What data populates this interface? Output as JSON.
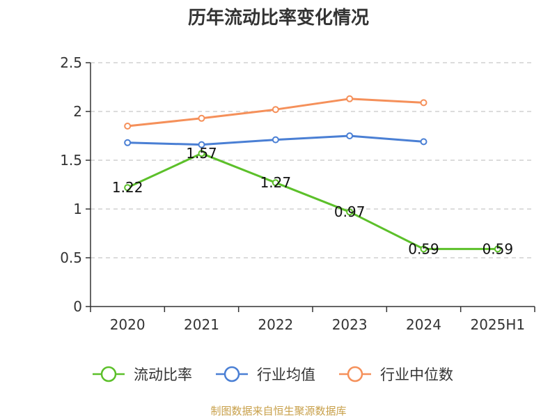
{
  "chart_data": {
    "type": "line",
    "title": "历年流动比率变化情况",
    "categories": [
      "2020",
      "2021",
      "2022",
      "2023",
      "2024",
      "2025H1"
    ],
    "ylim": [
      0,
      2.5
    ],
    "yticks": [
      0,
      0.5,
      1,
      1.5,
      2,
      2.5
    ],
    "ytick_labels": [
      "0",
      "0.5",
      "1",
      "1.5",
      "2",
      "2.5"
    ],
    "grid": "horizontal-dashed",
    "legend_position": "bottom",
    "series": [
      {
        "name": "流动比率",
        "color": "#5cc02a",
        "values": [
          1.22,
          1.57,
          1.27,
          0.97,
          0.59,
          0.59
        ],
        "data_labels": [
          "1.22",
          "1.57",
          "1.27",
          "0.97",
          "0.59",
          "0.59"
        ]
      },
      {
        "name": "行业均值",
        "color": "#4a7fd4",
        "values": [
          1.68,
          1.66,
          1.71,
          1.75,
          1.69,
          null
        ]
      },
      {
        "name": "行业中位数",
        "color": "#f5905a",
        "values": [
          1.85,
          1.93,
          2.02,
          2.13,
          2.09,
          null
        ]
      }
    ]
  },
  "footer": {
    "source": "制图数据来自恒生聚源数据库"
  }
}
